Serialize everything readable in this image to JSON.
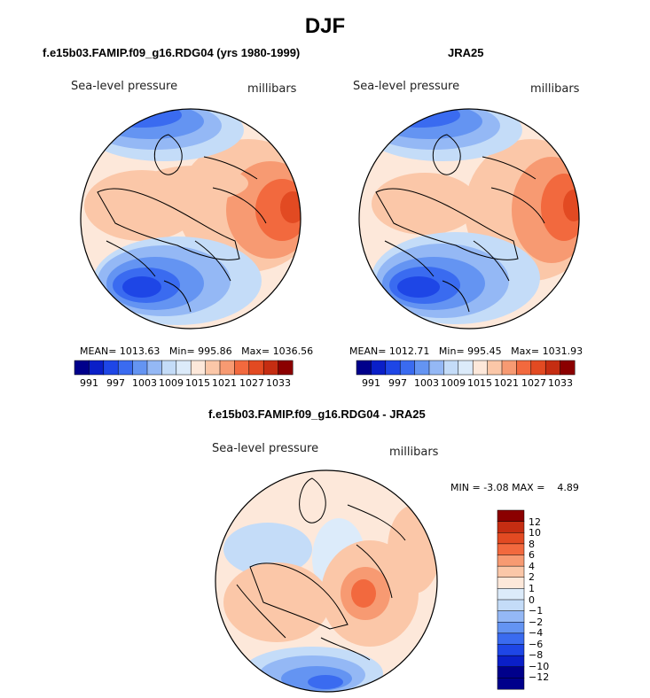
{
  "title": "DJF",
  "colors": {
    "blues": [
      "#00008b",
      "#0a1fc8",
      "#1e46e6",
      "#3a6bf0",
      "#6494f2",
      "#94b8f5",
      "#c4dcf8"
    ],
    "neutral_light_blue": "#dcebfa",
    "reds": [
      "#fde8da",
      "#fbc7a8",
      "#f79a72",
      "#f2693e",
      "#e24a22",
      "#c52d12",
      "#8b0000"
    ],
    "coast": "#000000"
  },
  "panels": [
    {
      "title": "f.e15b03.FAMIP.f09_g16.RDG04 (yrs 1980-1999)",
      "variable": "Sea-level pressure",
      "units": "millibars",
      "mean_label": "MEAN=",
      "mean": "1013.63",
      "min_label": "Min=",
      "min": "995.86",
      "max_label": "Max=",
      "max": "1036.56",
      "colorbar_ticks": [
        "991",
        "997",
        "1003",
        "1009",
        "1015",
        "1021",
        "1027",
        "1033"
      ]
    },
    {
      "title": "JRA25",
      "variable": "Sea-level pressure",
      "units": "millibars",
      "mean_label": "MEAN=",
      "mean": "1012.71",
      "min_label": "Min=",
      "min": "995.45",
      "max_label": "Max=",
      "max": "1031.93",
      "colorbar_ticks": [
        "991",
        "997",
        "1003",
        "1009",
        "1015",
        "1021",
        "1027",
        "1033"
      ]
    },
    {
      "title": "f.e15b03.FAMIP.f09_g16.RDG04 - JRA25",
      "variable": "Sea-level pressure",
      "units": "millibars",
      "min_label": "MIN =",
      "min": "-3.08",
      "max_label": "MAX =",
      "max": "4.89",
      "colorbar_ticks": [
        "12",
        "10",
        "8",
        "6",
        "4",
        "2",
        "1",
        "0",
        "−1",
        "−2",
        "−4",
        "−6",
        "−8",
        "−10",
        "−12"
      ]
    }
  ]
}
